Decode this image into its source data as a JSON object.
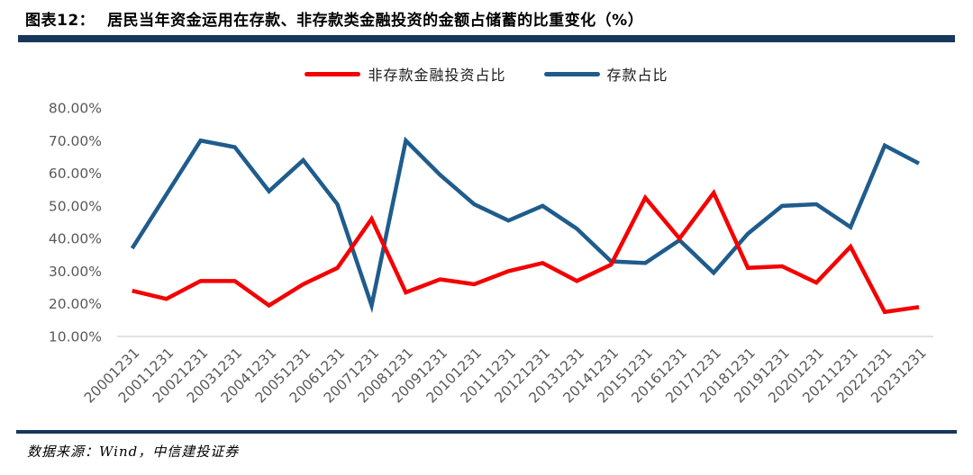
{
  "header": {
    "figure_label": "图表12：",
    "title": "居民当年资金运用在存款、非存款类金融投资的金额占储蓄的比重变化（%）"
  },
  "footer": {
    "source": "数据来源：Wind，中信建投证券"
  },
  "colors": {
    "accent_bar": "#17375D",
    "nondeposit_line": "#F40000",
    "deposit_line": "#1F5C8C",
    "axis_text": "#595959",
    "baseline": "#D9D9D9"
  },
  "chart_data": {
    "type": "line",
    "title": "居民当年资金运用在存款、非存款类金融投资的金额占储蓄的比重变化（%）",
    "categories": [
      "20001231",
      "20011231",
      "20021231",
      "20031231",
      "20041231",
      "20051231",
      "20061231",
      "20071231",
      "20081231",
      "20091231",
      "20101231",
      "20111231",
      "20121231",
      "20131231",
      "20141231",
      "20151231",
      "20161231",
      "20171231",
      "20181231",
      "20191231",
      "20201231",
      "20211231",
      "20221231",
      "20231231"
    ],
    "series": [
      {
        "name": "非存款金融投资占比",
        "color": "#F40000",
        "values": [
          24,
          21.5,
          27,
          27,
          19.5,
          26,
          31,
          46,
          23.5,
          27.5,
          26,
          30,
          32.5,
          27,
          32,
          52.5,
          40,
          54,
          31,
          31.5,
          26.5,
          37.5,
          17.5,
          19
        ]
      },
      {
        "name": "存款占比",
        "color": "#1F5C8C",
        "values": [
          37,
          53.5,
          70,
          68,
          54.5,
          64,
          50.5,
          19.5,
          70,
          59.5,
          50.5,
          45.5,
          50,
          43,
          33,
          32.5,
          39.5,
          29.5,
          41.5,
          50,
          50.5,
          43.5,
          68.5,
          63
        ]
      }
    ],
    "ylim": [
      10,
      80
    ],
    "y_ticks": [
      "80.00%",
      "70.00%",
      "60.00%",
      "50.00%",
      "40.00%",
      "30.00%",
      "20.00%",
      "10.00%"
    ],
    "y_tick_values": [
      80,
      70,
      60,
      50,
      40,
      30,
      20,
      10
    ],
    "xlabel": "",
    "ylabel": "",
    "grid": "baseline-only",
    "legend_position": "top-center"
  }
}
